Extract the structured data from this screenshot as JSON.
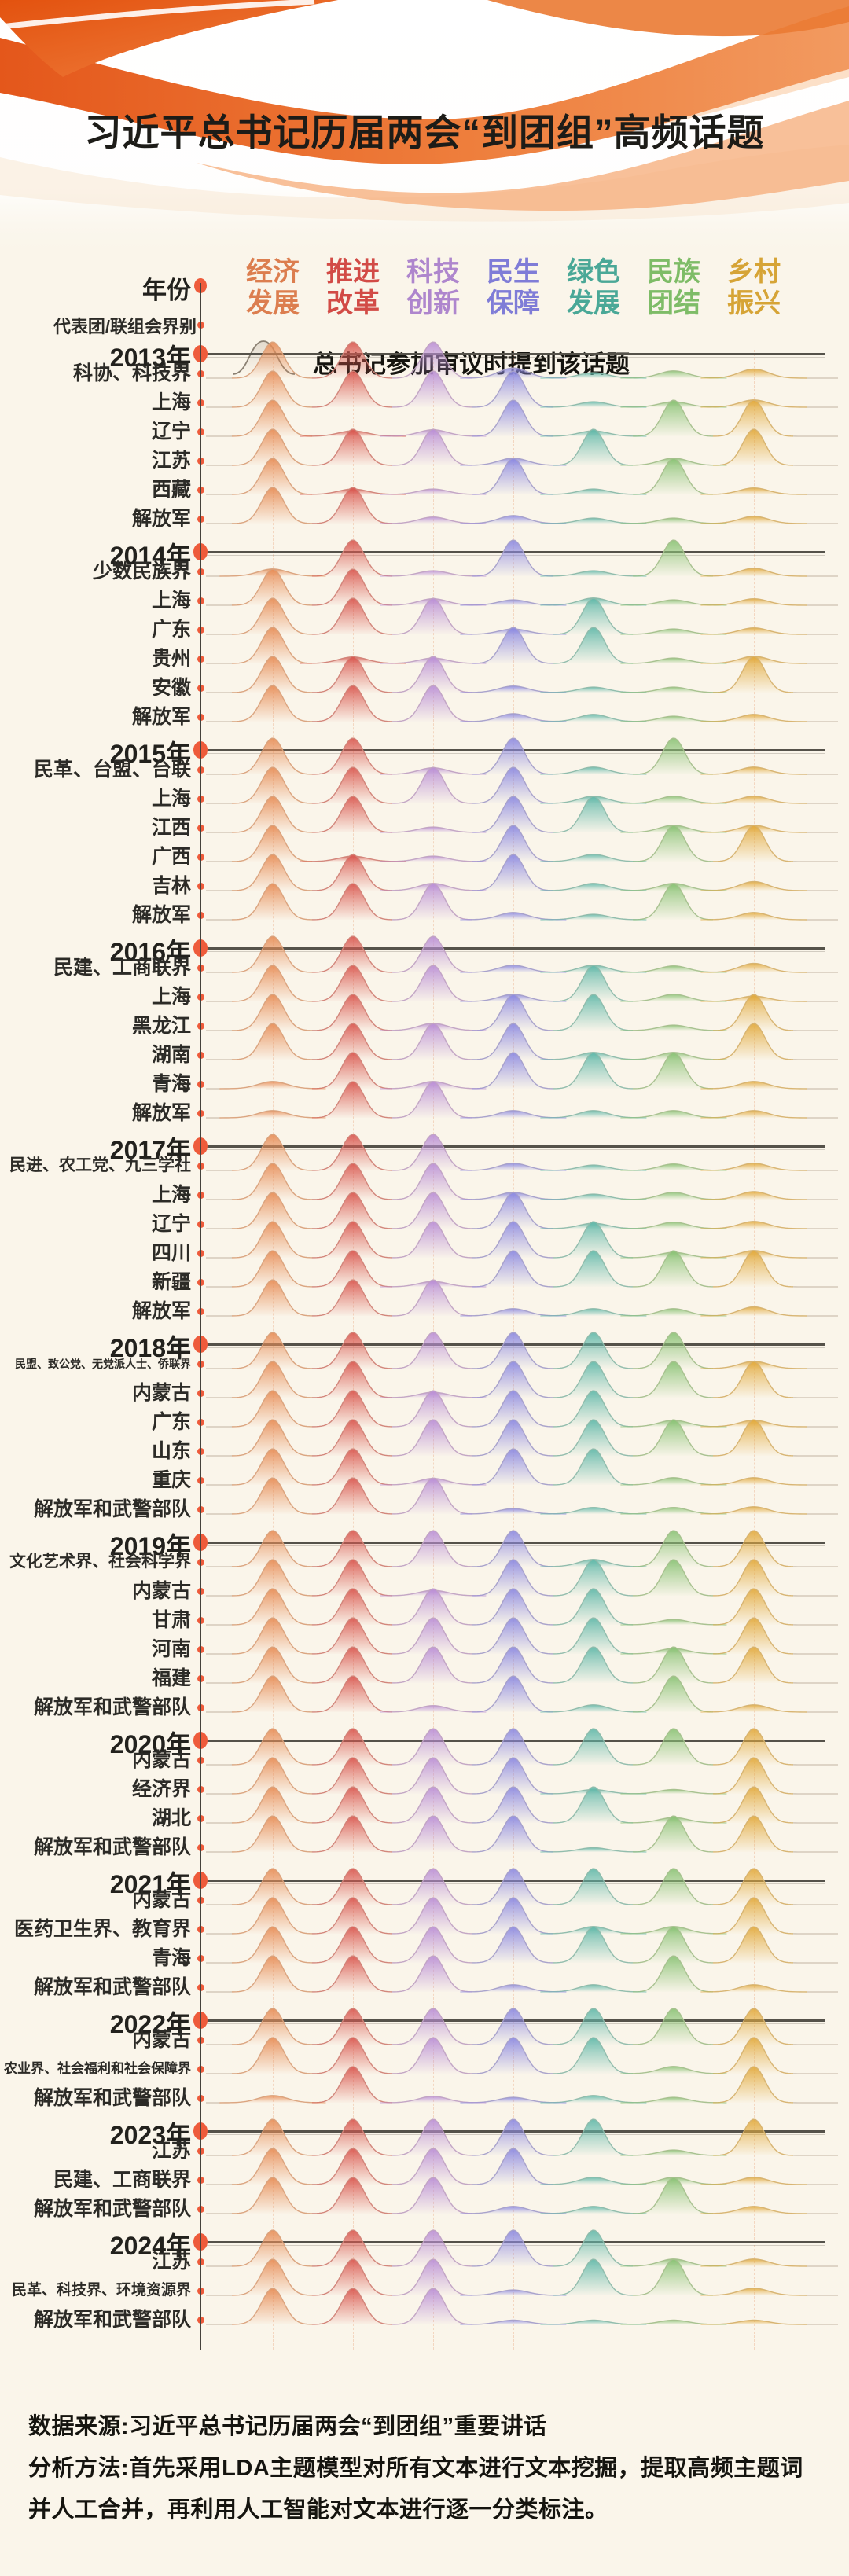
{
  "title": "习近平总书记历届两会“到团组”高频话题",
  "legend": {
    "label": "总书记参加审议时提到该话题"
  },
  "axis": {
    "year_label": "年份",
    "delegation_label": "代表团/联组会界别"
  },
  "topics": [
    {
      "label": "经济发展",
      "lines": [
        "经济",
        "发展"
      ],
      "color": "#DC7E4F",
      "fill": "#E78E58"
    },
    {
      "label": "推进改革",
      "lines": [
        "推进",
        "改革"
      ],
      "color": "#D24B46",
      "fill": "#D95850"
    },
    {
      "label": "科技创新",
      "lines": [
        "科技",
        "创新"
      ],
      "color": "#AE86CD",
      "fill": "#BB90D6"
    },
    {
      "label": "民生保障",
      "lines": [
        "民生",
        "保障"
      ],
      "color": "#7F7CD7",
      "fill": "#8D8AE1"
    },
    {
      "label": "绿色发展",
      "lines": [
        "绿色",
        "发展"
      ],
      "color": "#4AA897",
      "fill": "#63B9AA"
    },
    {
      "label": "民族团结",
      "lines": [
        "民族",
        "团结"
      ],
      "color": "#7EBC67",
      "fill": "#8CC377"
    },
    {
      "label": "乡村振兴",
      "lines": [
        "乡村",
        "振兴"
      ],
      "color": "#D6A436",
      "fill": "#E2AB40"
    }
  ],
  "chart_data": {
    "type": "heatmap",
    "note": "ridgeline rows; value = relative peak height of topic mention (1 = major peak, ~0.2 = minor bump)",
    "columns": [
      "经济发展",
      "推进改革",
      "科技创新",
      "民生保障",
      "绿色发展",
      "民族团结",
      "乡村振兴"
    ],
    "groups": [
      {
        "year": "2013年",
        "rows": [
          {
            "label": "科协、科技界",
            "values": [
              1,
              1,
              1,
              0.28,
              0.15,
              0.2,
              0.25
            ]
          },
          {
            "label": "上海",
            "values": [
              1,
              1,
              1,
              1,
              0.15,
              0.15,
              0.2
            ]
          },
          {
            "label": "辽宁",
            "values": [
              1,
              0.15,
              0.18,
              1,
              0.15,
              1,
              1
            ]
          },
          {
            "label": "江苏",
            "values": [
              1,
              1,
              1,
              0.2,
              1,
              0.2,
              1
            ]
          },
          {
            "label": "西藏",
            "values": [
              1,
              0.15,
              0.15,
              1,
              0.15,
              1,
              0.18
            ]
          },
          {
            "label": "解放军",
            "values": [
              1,
              1,
              0.18,
              0.22,
              0.15,
              0.15,
              0.2
            ]
          }
        ]
      },
      {
        "year": "2014年",
        "rows": [
          {
            "label": "少数民族界",
            "values": [
              0.2,
              1,
              0.15,
              1,
              0.15,
              1,
              0.22
            ]
          },
          {
            "label": "上海",
            "values": [
              1,
              1,
              0.18,
              0.15,
              0.2,
              0.15,
              0.18
            ]
          },
          {
            "label": "广东",
            "values": [
              1,
              1,
              1,
              0.15,
              1,
              0.15,
              0.18
            ]
          },
          {
            "label": "贵州",
            "values": [
              1,
              0.18,
              0.15,
              1,
              1,
              0.15,
              0.2
            ]
          },
          {
            "label": "安徽",
            "values": [
              1,
              1,
              1,
              0.18,
              0.15,
              0.15,
              1
            ]
          },
          {
            "label": "解放军",
            "values": [
              1,
              1,
              1,
              0.22,
              0.2,
              0.15,
              0.2
            ]
          }
        ]
      },
      {
        "year": "2015年",
        "rows": [
          {
            "label": "民革、台盟、台联",
            "values": [
              1,
              1,
              0.18,
              1,
              0.2,
              1,
              0.2
            ]
          },
          {
            "label": "上海",
            "values": [
              1,
              1,
              1,
              1,
              0.2,
              0.2,
              0.2
            ]
          },
          {
            "label": "江西",
            "values": [
              1,
              1,
              0.15,
              1,
              1,
              0.2,
              0.2
            ]
          },
          {
            "label": "广西",
            "values": [
              1,
              0.15,
              0.15,
              1,
              0.2,
              1,
              1
            ]
          },
          {
            "label": "吉林",
            "values": [
              1,
              1,
              0.2,
              1,
              0.2,
              0.2,
              0.25
            ]
          },
          {
            "label": "解放军",
            "values": [
              1,
              1,
              1,
              0.2,
              0.15,
              1,
              0.2
            ]
          }
        ]
      },
      {
        "year": "2016年",
        "rows": [
          {
            "label": "民建、工商联界",
            "values": [
              1,
              1,
              1,
              0.2,
              0.2,
              0.18,
              0.25
            ]
          },
          {
            "label": "上海",
            "values": [
              1,
              1,
              1,
              0.2,
              1,
              0.2,
              0.15
            ]
          },
          {
            "label": "黑龙江",
            "values": [
              1,
              1,
              0.2,
              1,
              1,
              0.15,
              1
            ]
          },
          {
            "label": "湖南",
            "values": [
              1,
              1,
              1,
              1,
              0.2,
              0.2,
              1
            ]
          },
          {
            "label": "青海",
            "values": [
              0.2,
              1,
              0.2,
              1,
              1,
              1,
              0.2
            ]
          },
          {
            "label": "解放军",
            "values": [
              0.2,
              1,
              1,
              0.2,
              0.2,
              0.2,
              0.2
            ]
          }
        ]
      },
      {
        "year": "2017年",
        "rows": [
          {
            "label": "民进、农工党、九三学社",
            "values": [
              1,
              1,
              1,
              0.2,
              0.15,
              0.18,
              0.2
            ]
          },
          {
            "label": "上海",
            "values": [
              1,
              1,
              1,
              0.2,
              0.15,
              0.2,
              0.22
            ]
          },
          {
            "label": "辽宁",
            "values": [
              1,
              1,
              1,
              1,
              0.15,
              0.18,
              0.2
            ]
          },
          {
            "label": "四川",
            "values": [
              1,
              1,
              1,
              1,
              1,
              0.15,
              0.2
            ]
          },
          {
            "label": "新疆",
            "values": [
              1,
              1,
              0.15,
              1,
              1,
              1,
              1
            ]
          },
          {
            "label": "解放军",
            "values": [
              1,
              1,
              1,
              0.2,
              0.2,
              0.2,
              0.25
            ]
          }
        ]
      },
      {
        "year": "2018年",
        "rows": [
          {
            "label": "民盟、致公党、无党派人士、侨联界",
            "values": [
              1,
              1,
              1,
              1,
              1,
              1,
              0.2
            ]
          },
          {
            "label": "内蒙古",
            "values": [
              1,
              1,
              0.15,
              1,
              1,
              1,
              1
            ]
          },
          {
            "label": "广东",
            "values": [
              1,
              1,
              1,
              1,
              1,
              0.18,
              0.18
            ]
          },
          {
            "label": "山东",
            "values": [
              1,
              1,
              1,
              1,
              1,
              1,
              1
            ]
          },
          {
            "label": "重庆",
            "values": [
              1,
              1,
              0.18,
              1,
              1,
              0.2,
              0.2
            ]
          },
          {
            "label": "解放军和武警部队",
            "values": [
              1,
              1,
              1,
              0.15,
              0.18,
              0.18,
              0.2
            ]
          }
        ]
      },
      {
        "year": "2019年",
        "rows": [
          {
            "label": "文化艺术界、社会科学界",
            "values": [
              1,
              1,
              1,
              1,
              0.2,
              1,
              1
            ]
          },
          {
            "label": "内蒙古",
            "values": [
              1,
              1,
              0.15,
              1,
              1,
              1,
              1
            ]
          },
          {
            "label": "甘肃",
            "values": [
              1,
              1,
              1,
              1,
              1,
              0.15,
              1
            ]
          },
          {
            "label": "河南",
            "values": [
              1,
              1,
              1,
              1,
              1,
              0.15,
              1
            ]
          },
          {
            "label": "福建",
            "values": [
              1,
              1,
              1,
              1,
              1,
              1,
              1
            ]
          },
          {
            "label": "解放军和武警部队",
            "values": [
              1,
              1,
              0.18,
              1,
              0.2,
              1,
              0.2
            ]
          }
        ]
      },
      {
        "year": "2020年",
        "rows": [
          {
            "label": "内蒙古",
            "values": [
              1,
              1,
              1,
              1,
              1,
              1,
              1
            ]
          },
          {
            "label": "经济界",
            "values": [
              1,
              1,
              1,
              1,
              0.12,
              0.12,
              1
            ]
          },
          {
            "label": "湖北",
            "values": [
              1,
              1,
              1,
              1,
              1,
              0.15,
              1
            ]
          },
          {
            "label": "解放军和武警部队",
            "values": [
              1,
              1,
              1,
              1,
              0.12,
              1,
              1
            ]
          }
        ]
      },
      {
        "year": "2021年",
        "rows": [
          {
            "label": "内蒙古",
            "values": [
              1,
              1,
              1,
              1,
              1,
              1,
              1
            ]
          },
          {
            "label": "医药卫生界、教育界",
            "values": [
              1,
              1,
              1,
              1,
              0.2,
              0.2,
              1
            ]
          },
          {
            "label": "青海",
            "values": [
              1,
              1,
              1,
              1,
              1,
              1,
              1
            ]
          },
          {
            "label": "解放军和武警部队",
            "values": [
              1,
              1,
              1,
              0.2,
              0.2,
              1,
              0.2
            ]
          }
        ]
      },
      {
        "year": "2022年",
        "rows": [
          {
            "label": "内蒙古",
            "values": [
              1,
              1,
              1,
              1,
              1,
              1,
              1
            ]
          },
          {
            "label": "农业界、社会福利和社会保障界",
            "values": [
              1,
              1,
              1,
              1,
              1,
              0.2,
              1
            ]
          },
          {
            "label": "解放军和武警部队",
            "values": [
              0.2,
              1,
              0.18,
              0.15,
              0.2,
              0.15,
              1
            ]
          }
        ]
      },
      {
        "year": "2023年",
        "rows": [
          {
            "label": "江苏",
            "values": [
              1,
              1,
              1,
              1,
              1,
              0.15,
              1
            ]
          },
          {
            "label": "民建、工商联界",
            "values": [
              1,
              1,
              1,
              1,
              0.2,
              0.2,
              0.2
            ]
          },
          {
            "label": "解放军和武警部队",
            "values": [
              1,
              1,
              1,
              0.2,
              0.2,
              1,
              0.2
            ]
          }
        ]
      },
      {
        "year": "2024年",
        "rows": [
          {
            "label": "江苏",
            "values": [
              1,
              1,
              1,
              1,
              1,
              0.2,
              0.2
            ]
          },
          {
            "label": "民革、科技界、环境资源界",
            "values": [
              1,
              1,
              1,
              0.15,
              1,
              1,
              0.2
            ]
          },
          {
            "label": "解放军和武警部队",
            "values": [
              1,
              1,
              1,
              0.12,
              0.12,
              0.12,
              0.12
            ]
          }
        ]
      }
    ]
  },
  "footer": {
    "source": "数据来源:习近平总书记历届两会“到团组”重要讲话",
    "method_line1": "分析方法:首先采用LDA主题模型对所有文本进行文本挖掘，提取高频主题词",
    "method_line2": "并人工合并，再利用人工智能对文本进行逐一分类标注。"
  },
  "colors": {
    "background": "#FAF5EA",
    "accent_dot": "#EE5B3B",
    "axis": "#45423c",
    "year_line": "#55524a",
    "wave_deep": "#E4571B",
    "wave_mid": "#EF7E3C",
    "wave_light": "#F6AE7C"
  }
}
